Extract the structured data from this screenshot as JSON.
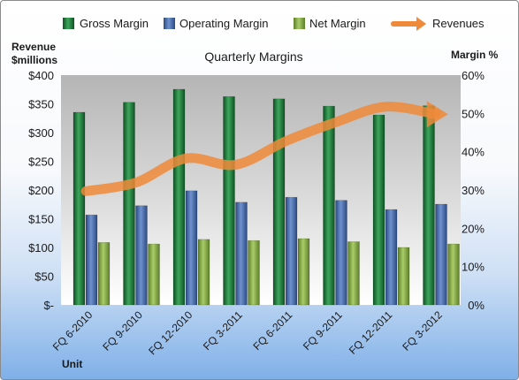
{
  "chart_data": {
    "type": "bar",
    "title": "Quarterly Margins",
    "categories": [
      "FQ 6-2010",
      "FQ 9-2010",
      "FQ 12-2010",
      "FQ 3-2011",
      "FQ 6-2011",
      "FQ 9-2011",
      "FQ 12-2011",
      "FQ 3-2012"
    ],
    "series": [
      {
        "name": "Gross Margin",
        "axis": "right",
        "unit": "%",
        "color": "#1e7a3c",
        "values": [
          50.3,
          52.9,
          56.3,
          54.4,
          53.8,
          51.9,
          49.6,
          52.0
        ]
      },
      {
        "name": "Operating Margin",
        "axis": "right",
        "unit": "%",
        "color": "#4a6fae",
        "values": [
          23.5,
          25.9,
          29.8,
          26.8,
          28.1,
          27.3,
          24.9,
          26.3
        ]
      },
      {
        "name": "Net Margin",
        "axis": "right",
        "unit": "%",
        "color": "#8fb64a",
        "values": [
          16.3,
          15.9,
          17.1,
          16.8,
          17.3,
          16.5,
          15.0,
          15.9
        ]
      },
      {
        "name": "Revenues",
        "axis": "left",
        "unit": "$millions",
        "color": "#ee8a3a",
        "type": "line",
        "values": [
          198,
          213,
          255,
          244,
          285,
          318,
          345,
          332
        ]
      }
    ],
    "left_axis": {
      "label_line1": "Revenue",
      "label_line2": "$millions",
      "range": [
        0,
        400
      ],
      "ticks": [
        "$-",
        "$50",
        "$100",
        "$150",
        "$200",
        "$250",
        "$300",
        "$350",
        "$400"
      ]
    },
    "right_axis": {
      "label": "Margin %",
      "range": [
        0,
        60
      ],
      "ticks": [
        "0%",
        "10%",
        "20%",
        "30%",
        "40%",
        "50%",
        "60%"
      ]
    },
    "xlabel": "Unit",
    "legend_position": "top",
    "grid": false,
    "plot_background": "gradient gray"
  }
}
